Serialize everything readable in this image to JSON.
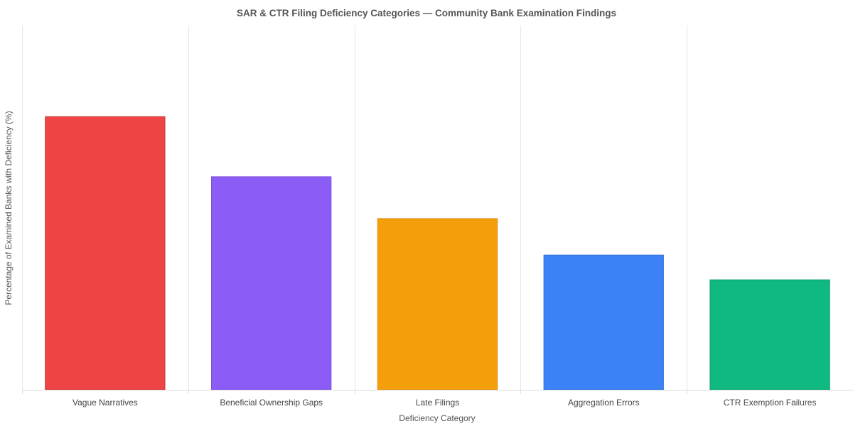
{
  "chart_data": {
    "type": "bar",
    "title": "SAR & CTR Filing Deficiency Categories — Community Bank Examination Findings",
    "xlabel": "Deficiency Category",
    "ylabel": "Percentage of Examined Banks with Deficiency (%)",
    "categories": [
      "Vague Narratives",
      "Beneficial Ownership Gaps",
      "Late Filings",
      "Aggregation Errors",
      "CTR Exemption Failures"
    ],
    "values": [
      75,
      58.5,
      47,
      37,
      30.2
    ],
    "ylim": [
      0,
      100
    ],
    "colors": [
      "#ef4444",
      "#8b5cf6",
      "#f59e0b",
      "#3b82f6",
      "#10b981"
    ],
    "border_colors": [
      "#c43434",
      "#7a4ed9",
      "#d98a0a",
      "#3370d6",
      "#0f9e6e"
    ],
    "grid": "vertical",
    "legend": "none"
  }
}
